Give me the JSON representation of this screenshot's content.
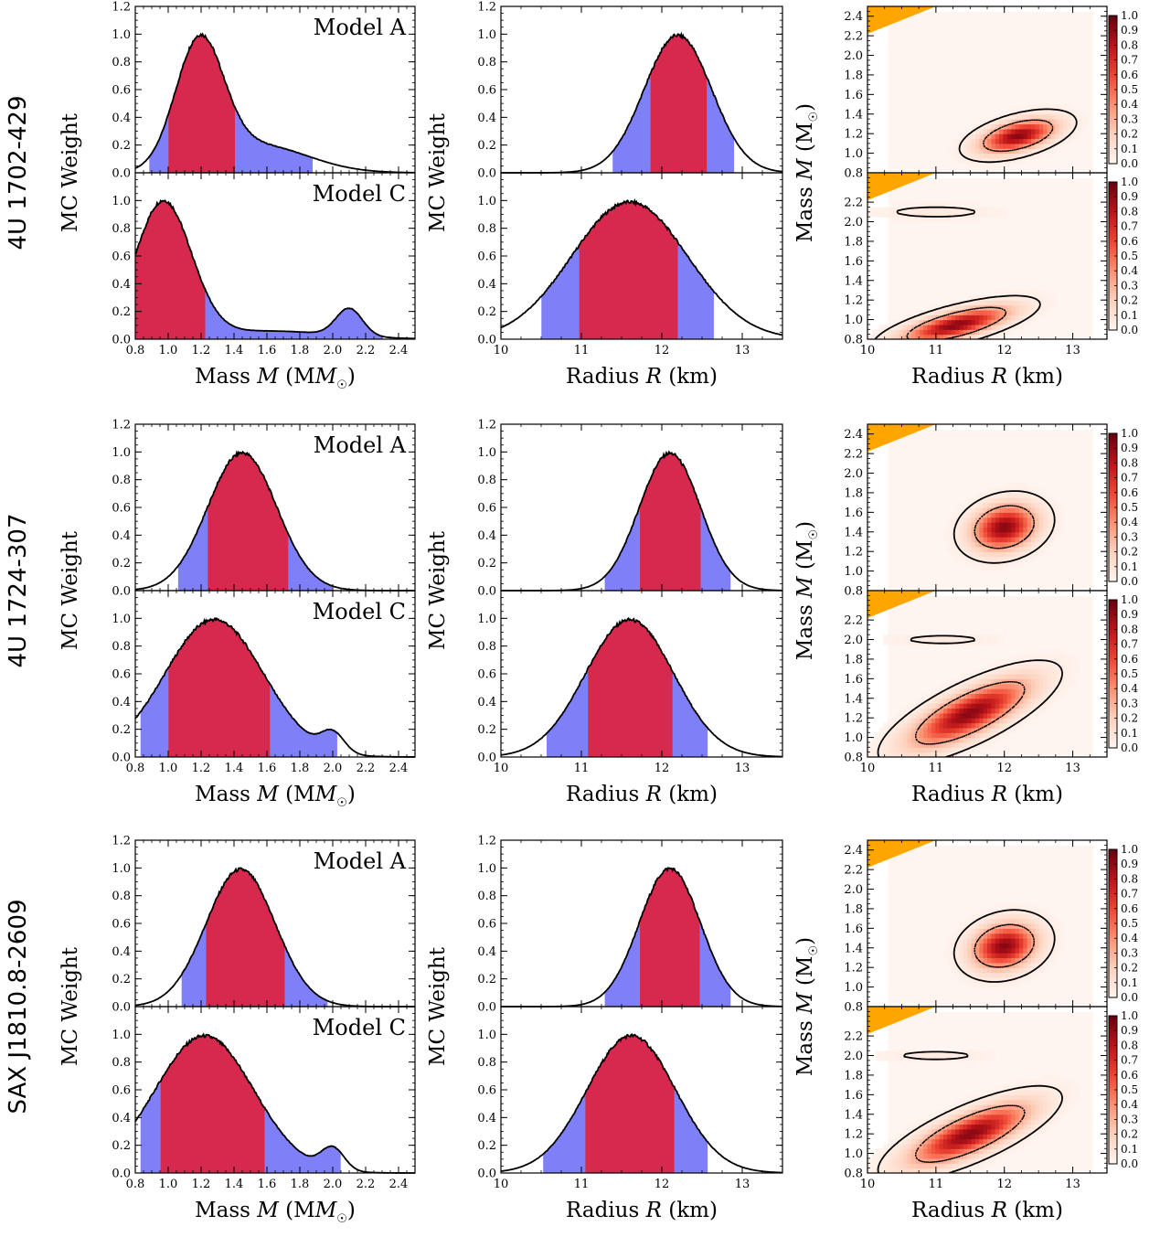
{
  "chart_data": {
    "type": "area",
    "description_axes": {
      "mass_xlim": [
        0.8,
        2.5
      ],
      "mass_xticks": [
        "0.8",
        "1.0",
        "1.2",
        "1.4",
        "1.6",
        "1.8",
        "2.0",
        "2.2",
        "2.4"
      ],
      "radius_xlim": [
        10,
        13.5
      ],
      "radius_xticks": [
        "10",
        "11",
        "12",
        "13"
      ],
      "weight_ylim": [
        0,
        1.2
      ],
      "weight_yticks_top": [
        "0.0",
        "0.2",
        "0.4",
        "0.6",
        "0.8",
        "1.0",
        "1.2"
      ],
      "weight_yticks_bottom": [
        "0.0",
        "0.2",
        "0.4",
        "0.6",
        "0.8",
        "1.0"
      ],
      "mr_ylim": [
        0.8,
        2.5
      ],
      "mr_yticks_top": [
        "0.8",
        "1.0",
        "1.2",
        "1.4",
        "1.6",
        "1.8",
        "2.0",
        "2.2",
        "2.4"
      ],
      "mr_yticks_bottom": [
        "0.8",
        "1.0",
        "1.2",
        "1.4",
        "1.6",
        "1.8",
        "2.0",
        "2.2"
      ],
      "colorbar_ticks": [
        "0.0",
        "0.1",
        "0.2",
        "0.3",
        "0.4",
        "0.5",
        "0.6",
        "0.7",
        "0.8",
        "0.9",
        "1.0"
      ]
    },
    "labels": {
      "mass_xlabel_pre": "Mass ",
      "mass_xlabel_var": "M",
      "mass_xlabel_unit": "(M",
      "mass_xlabel_close": ")",
      "radius_xlabel_pre": "Radius ",
      "radius_xlabel_var": "R",
      "radius_xlabel_unit": " (km)",
      "weight_ylabel": "MC Weight",
      "mr_ylabel_pre": "Mass ",
      "mr_ylabel_var": "M",
      "mr_ylabel_unit": " (M",
      "mr_ylabel_close": ")",
      "model_a": "Model A",
      "model_c": "Model C"
    },
    "colors": {
      "inner_fill": "#d7284e",
      "outer_fill": "#7f7ff7",
      "forbidden": "#ffa500",
      "cmap_low": "#fff5f0",
      "cmap_high": "#67000d"
    },
    "sources": [
      {
        "name": "4U 1702-429",
        "panels": [
          {
            "model": "Model A",
            "mass": {
              "peak": [
                1.0,
                1.19,
                0.17,
                0.45
              ],
              "int68": [
                1.0,
                1.41
              ],
              "int95": [
                0.88,
                1.88
              ],
              "comps": [
                [
                  1.0,
                  1.19,
                  0.145
                ],
                [
                  0.22,
                  1.55,
                  0.3
                ]
              ]
            },
            "radius": {
              "int68": [
                11.85,
                12.57
              ],
              "int95": [
                11.38,
                12.9
              ],
              "comps": [
                [
                  1.0,
                  12.2,
                  0.42
                ]
              ]
            },
            "mr": {
              "blobs": [
                [
                  1.0,
                  12.2,
                  1.18,
                  0.35,
                  0.11,
                  0.5
                ]
              ],
              "forbidden": true
            }
          },
          {
            "model": "Model C",
            "mass": {
              "int68": [
                0.8,
                1.23
              ],
              "int95": [
                0.8,
                2.3
              ],
              "comps": [
                [
                  1.0,
                  0.97,
                  0.17
                ],
                [
                  0.06,
                  1.6,
                  0.4
                ],
                [
                  0.2,
                  2.1,
                  0.08
                ]
              ]
            },
            "radius": {
              "int68": [
                10.97,
                12.2
              ],
              "int95": [
                10.5,
                12.65
              ],
              "comps": [
                [
                  1.0,
                  11.6,
                  0.72
                ]
              ]
            },
            "mr": {
              "blobs": [
                [
                  1.0,
                  11.3,
                  0.95,
                  0.5,
                  0.12,
                  0.7
                ],
                [
                  0.08,
                  11.0,
                  2.1,
                  0.6,
                  0.05,
                  0.0
                ]
              ],
              "forbidden": true
            }
          }
        ]
      },
      {
        "name": "4U 1724-307",
        "panels": [
          {
            "model": "Model A",
            "mass": {
              "int68": [
                1.24,
                1.73
              ],
              "int95": [
                1.06,
                2.0
              ],
              "comps": [
                [
                  1.0,
                  1.45,
                  0.21
                ]
              ]
            },
            "radius": {
              "int68": [
                11.72,
                12.49
              ],
              "int95": [
                11.28,
                12.86
              ],
              "comps": [
                [
                  1.0,
                  12.1,
                  0.38
                ]
              ]
            },
            "mr": {
              "blobs": [
                [
                  1.0,
                  12.0,
                  1.45,
                  0.3,
                  0.15,
                  0.2
                ]
              ],
              "forbidden": true
            }
          },
          {
            "model": "Model C",
            "mass": {
              "int68": [
                1.0,
                1.62
              ],
              "int95": [
                0.83,
                2.03
              ],
              "comps": [
                [
                  1.0,
                  1.28,
                  0.3
                ],
                [
                  0.14,
                  2.0,
                  0.07
                ]
              ]
            },
            "radius": {
              "int68": [
                11.08,
                12.14
              ],
              "int95": [
                10.56,
                12.58
              ],
              "comps": [
                [
                  1.0,
                  11.6,
                  0.55
                ]
              ]
            },
            "mr": {
              "blobs": [
                [
                  1.0,
                  11.5,
                  1.25,
                  0.55,
                  0.22,
                  0.75
                ],
                [
                  0.08,
                  11.1,
                  2.0,
                  0.5,
                  0.04,
                  0.0
                ]
              ],
              "forbidden": true
            }
          }
        ]
      },
      {
        "name": "SAX J1810.8-2609",
        "panels": [
          {
            "model": "Model A",
            "mass": {
              "int68": [
                1.23,
                1.71
              ],
              "int95": [
                1.08,
                1.97
              ],
              "comps": [
                [
                  1.0,
                  1.44,
                  0.21
                ]
              ]
            },
            "radius": {
              "int68": [
                11.72,
                12.48
              ],
              "int95": [
                11.28,
                12.86
              ],
              "comps": [
                [
                  1.0,
                  12.1,
                  0.38
                ]
              ]
            },
            "mr": {
              "blobs": [
                [
                  1.0,
                  12.0,
                  1.42,
                  0.3,
                  0.15,
                  0.2
                ]
              ],
              "forbidden": true
            }
          },
          {
            "model": "Model C",
            "mass": {
              "int68": [
                0.95,
                1.59
              ],
              "int95": [
                0.83,
                2.05
              ],
              "comps": [
                [
                  1.0,
                  1.22,
                  0.3
                ],
                [
                  0.16,
                  2.0,
                  0.07
                ]
              ]
            },
            "radius": {
              "int68": [
                11.05,
                12.16
              ],
              "int95": [
                10.52,
                12.58
              ],
              "comps": [
                [
                  1.0,
                  11.62,
                  0.55
                ]
              ]
            },
            "mr": {
              "blobs": [
                [
                  1.0,
                  11.5,
                  1.2,
                  0.55,
                  0.2,
                  0.75
                ],
                [
                  0.08,
                  11.0,
                  2.0,
                  0.5,
                  0.04,
                  0.0
                ]
              ],
              "forbidden": true
            }
          }
        ]
      }
    ]
  }
}
